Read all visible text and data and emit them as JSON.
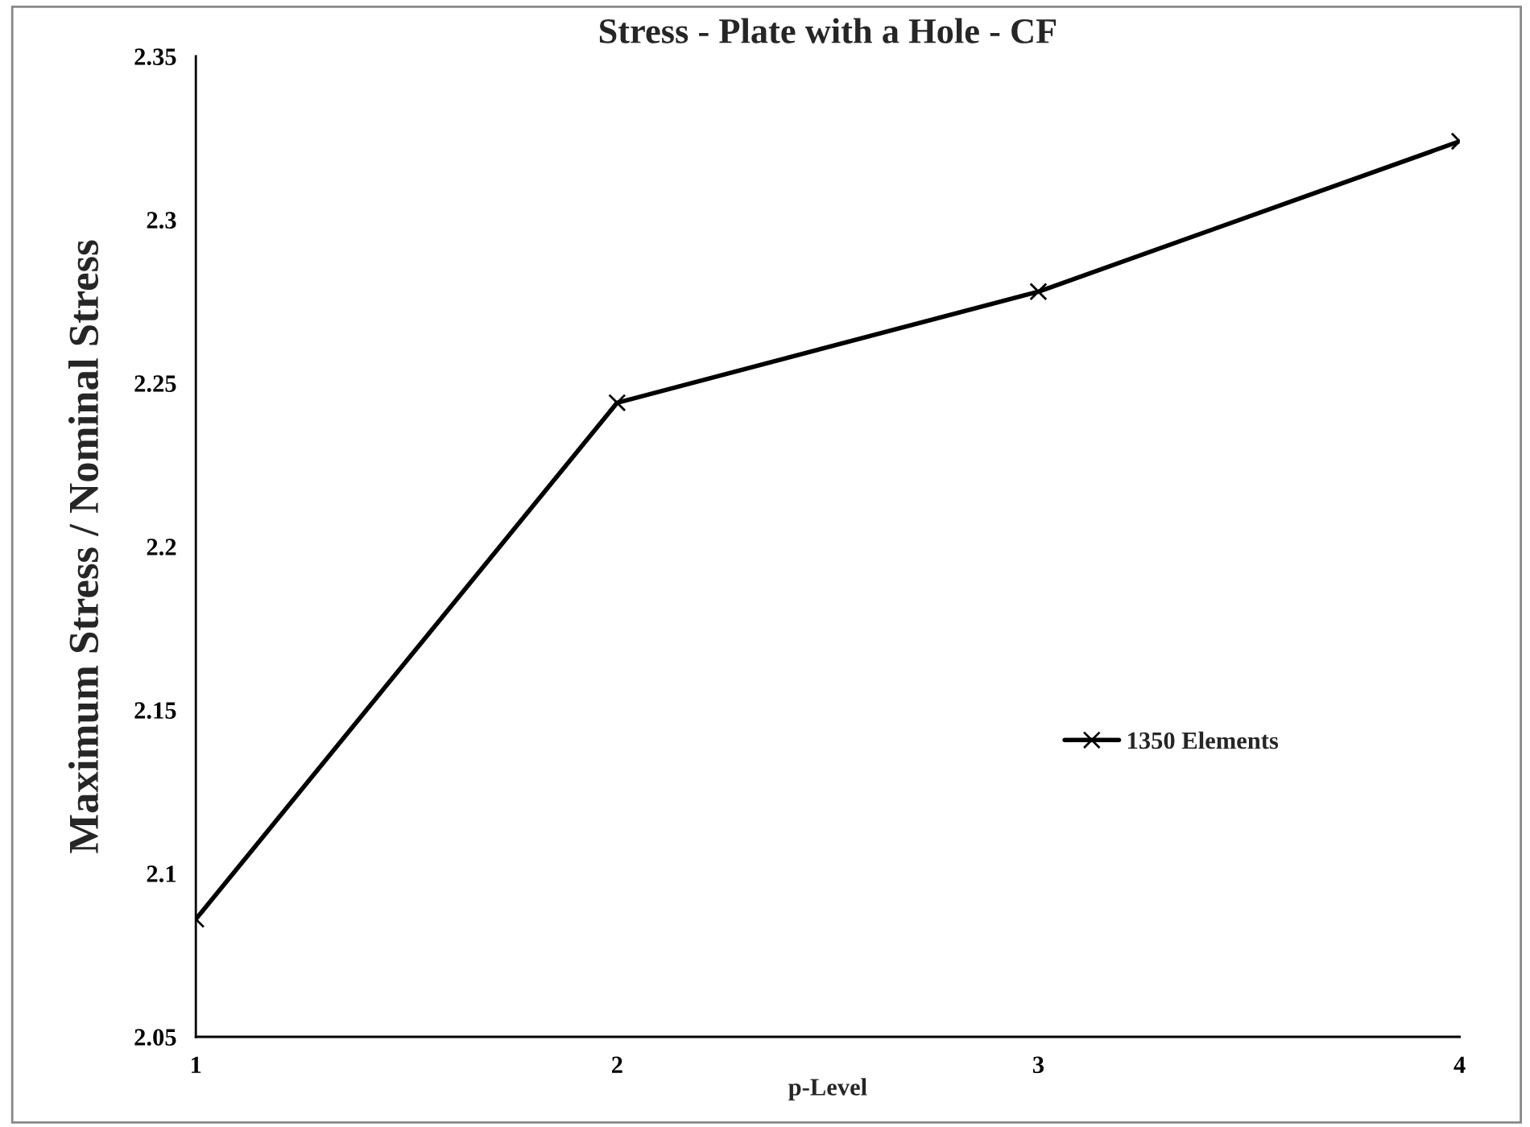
{
  "chart_data": {
    "type": "line",
    "title": "Stress - Plate with a Hole - CF",
    "xlabel": "p-Level",
    "ylabel": "Maximum Stress / Nominal Stress",
    "x": [
      1,
      2,
      3,
      4
    ],
    "series": [
      {
        "name": "1350 Elements",
        "color": "#000000",
        "values": [
          2.086,
          2.244,
          2.278,
          2.324
        ]
      }
    ],
    "xlim": [
      1,
      4
    ],
    "xticks": [
      1,
      2,
      3,
      4
    ],
    "ylim": [
      2.05,
      2.35
    ],
    "yticks": [
      {
        "value": 2.05,
        "label": "2.05"
      },
      {
        "value": 2.1,
        "label": "2.1"
      },
      {
        "value": 2.15,
        "label": "2.15"
      },
      {
        "value": 2.2,
        "label": "2.2"
      },
      {
        "value": 2.25,
        "label": "2.25"
      },
      {
        "value": 2.3,
        "label": "2.3"
      },
      {
        "value": 2.35,
        "label": "2.35"
      }
    ],
    "grid": false,
    "legend": "right",
    "marker": "cross",
    "line_style": "solid"
  }
}
